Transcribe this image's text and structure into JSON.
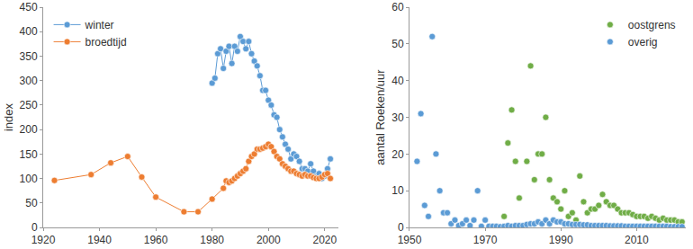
{
  "chart_data": [
    {
      "type": "line",
      "y_label": "index",
      "legend": "upper left",
      "grid": false,
      "marker": "circle",
      "xlim": [
        1920,
        2025
      ],
      "xticks": [
        1920,
        1940,
        1960,
        1980,
        2000,
        2020
      ],
      "ylim": [
        0,
        450
      ],
      "yticks": [
        0,
        50,
        100,
        150,
        200,
        250,
        300,
        350,
        400,
        450
      ],
      "series": [
        {
          "name": "winter",
          "color": "#5b9bd5",
          "x": [
            1980,
            1981,
            1982,
            1983,
            1984,
            1985,
            1986,
            1987,
            1988,
            1989,
            1990,
            1991,
            1992,
            1993,
            1994,
            1995,
            1996,
            1997,
            1998,
            1999,
            2000,
            2001,
            2002,
            2003,
            2004,
            2005,
            2006,
            2007,
            2008,
            2009,
            2010,
            2011,
            2012,
            2013,
            2014,
            2015,
            2016,
            2017,
            2018,
            2019,
            2020,
            2021,
            2022
          ],
          "values": [
            295,
            305,
            355,
            365,
            325,
            360,
            370,
            335,
            370,
            360,
            390,
            380,
            365,
            380,
            355,
            340,
            330,
            310,
            280,
            280,
            260,
            250,
            230,
            225,
            200,
            185,
            170,
            160,
            140,
            150,
            145,
            135,
            120,
            120,
            115,
            130,
            115,
            105,
            110,
            100,
            105,
            120,
            140
          ]
        },
        {
          "name": "broedtijd",
          "color": "#ed7d31",
          "x": [
            1924,
            1937,
            1944,
            1950,
            1955,
            1960,
            1970,
            1975,
            1980,
            1984,
            1985,
            1986,
            1987,
            1988,
            1989,
            1990,
            1991,
            1992,
            1993,
            1994,
            1995,
            1996,
            1997,
            1998,
            1999,
            2000,
            2001,
            2002,
            2003,
            2004,
            2005,
            2006,
            2007,
            2008,
            2009,
            2010,
            2011,
            2012,
            2013,
            2014,
            2015,
            2016,
            2017,
            2018,
            2019,
            2020,
            2021,
            2022
          ],
          "values": [
            96,
            108,
            132,
            145,
            103,
            62,
            32,
            32,
            58,
            80,
            95,
            92,
            95,
            100,
            105,
            110,
            115,
            120,
            135,
            145,
            150,
            160,
            160,
            162,
            165,
            170,
            165,
            155,
            145,
            140,
            130,
            125,
            120,
            115,
            115,
            110,
            108,
            105,
            108,
            105,
            105,
            102,
            100,
            100,
            103,
            108,
            110,
            100
          ]
        }
      ]
    },
    {
      "type": "scatter",
      "y_label": "aantal Roeken/uur",
      "legend": "upper right",
      "grid": false,
      "marker": "circle",
      "xlim": [
        1950,
        2023
      ],
      "xticks": [
        1950,
        1970,
        1990,
        2010
      ],
      "ylim": [
        0,
        60
      ],
      "yticks": [
        0,
        10,
        20,
        30,
        40,
        50,
        60
      ],
      "series": [
        {
          "name": "oostgrens",
          "color": "#70ad47",
          "x": [
            1975,
            1976,
            1977,
            1978,
            1979,
            1981,
            1982,
            1983,
            1984,
            1985,
            1986,
            1987,
            1988,
            1989,
            1990,
            1991,
            1992,
            1993,
            1994,
            1995,
            1996,
            1997,
            1998,
            1999,
            2000,
            2001,
            2002,
            2003,
            2004,
            2005,
            2006,
            2007,
            2008,
            2009,
            2010,
            2011,
            2012,
            2013,
            2014,
            2015,
            2016,
            2017,
            2018,
            2019,
            2020,
            2021,
            2022
          ],
          "values": [
            3,
            23,
            32,
            18,
            8,
            18,
            44,
            13,
            20,
            20,
            30,
            13,
            8,
            7,
            5,
            10,
            3,
            4,
            2,
            14,
            7,
            4,
            5,
            5,
            6,
            9,
            7,
            6,
            6,
            5,
            4,
            4,
            4,
            3.5,
            3,
            3,
            3,
            2.5,
            3,
            2.5,
            2,
            2.5,
            2,
            2,
            2,
            1.5,
            1.5
          ]
        },
        {
          "name": "overig",
          "color": "#5b9bd5",
          "x": [
            1952,
            1953,
            1954,
            1955,
            1956,
            1957,
            1958,
            1959,
            1960,
            1961,
            1962,
            1963,
            1964,
            1965,
            1966,
            1967,
            1968,
            1969,
            1970,
            1971,
            1972,
            1973,
            1974,
            1975,
            1976,
            1977,
            1978,
            1979,
            1980,
            1981,
            1982,
            1983,
            1984,
            1985,
            1986,
            1987,
            1988,
            1989,
            1990,
            1991,
            1992,
            1993,
            1994,
            1995,
            1996,
            1997,
            1998,
            1999,
            2000,
            2001,
            2002,
            2003,
            2004,
            2005,
            2006,
            2007,
            2008,
            2009,
            2010,
            2011,
            2012,
            2013,
            2014,
            2015,
            2016,
            2017,
            2018,
            2019,
            2020,
            2021,
            2022
          ],
          "values": [
            18,
            31,
            6,
            3,
            52,
            20,
            10,
            4,
            4,
            1,
            2,
            0.5,
            1,
            2,
            0.5,
            2,
            10,
            0.3,
            2,
            0.3,
            0.3,
            0.3,
            0.2,
            0.3,
            0.5,
            0.3,
            0.5,
            0.5,
            0.5,
            0.8,
            1,
            1,
            1.5,
            1,
            2,
            1,
            2,
            1.5,
            1.5,
            1,
            1,
            0.8,
            0.8,
            0.8,
            0.7,
            0.7,
            0.5,
            0.5,
            0.5,
            0.5,
            0.5,
            0.4,
            0.4,
            0.4,
            0.4,
            0.3,
            0.3,
            0.3,
            0.3,
            0.3,
            0.3,
            0.3,
            0.3,
            0.3,
            0.3,
            0.3,
            0.3,
            0.2,
            0.2,
            0.2,
            0.2
          ]
        }
      ]
    }
  ]
}
